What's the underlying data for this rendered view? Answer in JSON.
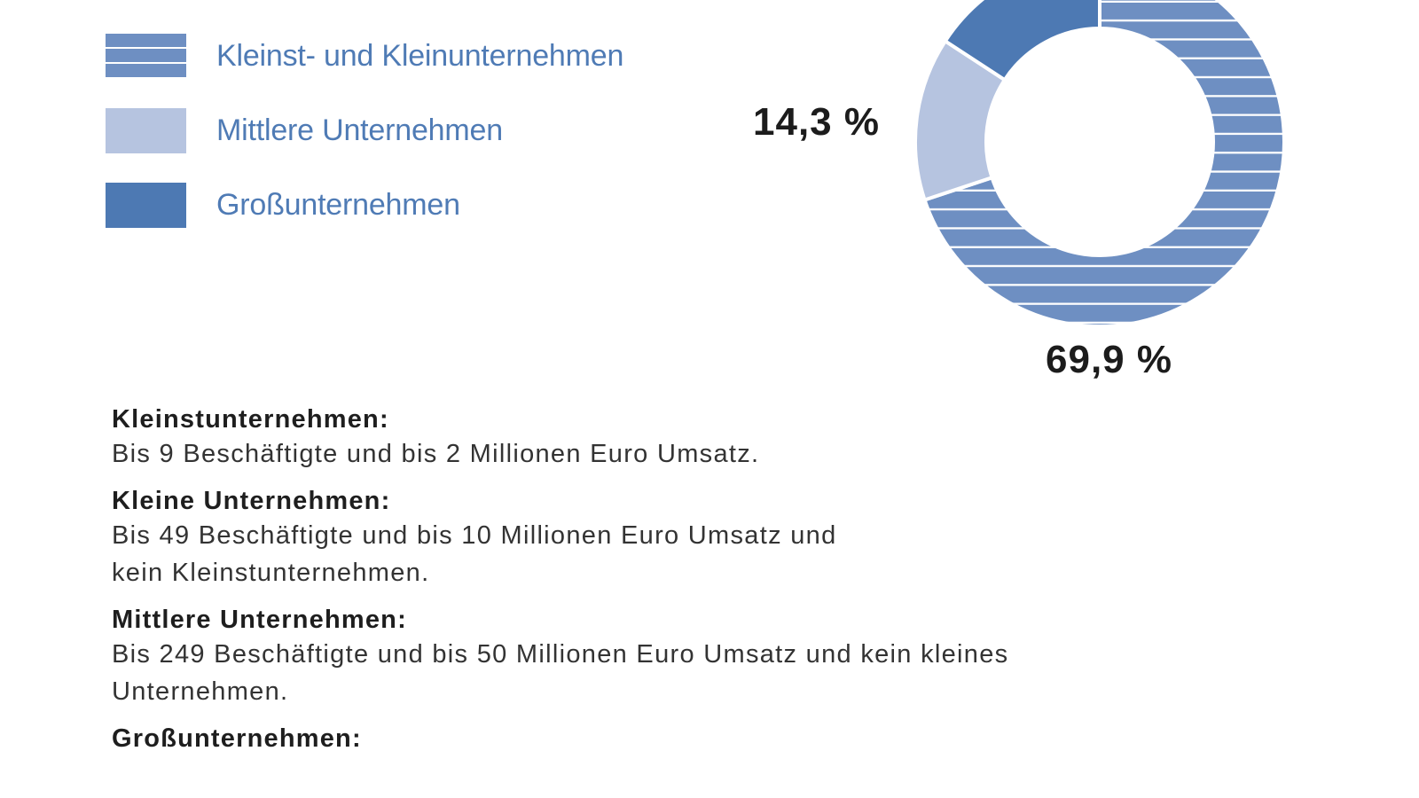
{
  "legend": {
    "items": [
      {
        "label": "Kleinst- und Kleinunternehmen",
        "color": "#6E8FC2",
        "pattern": "horizontal-stripes"
      },
      {
        "label": "Mittlere Unternehmen",
        "color": "#B6C4E0",
        "pattern": "solid"
      },
      {
        "label": "Großunternehmen",
        "color": "#4D79B3",
        "pattern": "solid"
      }
    ]
  },
  "labels": {
    "mittlere": "14,3 %",
    "klein": "69,9 %"
  },
  "definitions": [
    {
      "title": "Kleinstunternehmen:",
      "text": [
        "Bis 9 Beschäftigte und bis 2 Millionen Euro Umsatz."
      ]
    },
    {
      "title": "Kleine Unternehmen:",
      "text": [
        "Bis 49 Beschäftigte und bis 10 Millionen Euro Umsatz und",
        "kein Kleinstunternehmen."
      ]
    },
    {
      "title": "Mittlere Unternehmen:",
      "text": [
        "Bis 249 Beschäftigte und bis 50 Millionen Euro Umsatz und kein kleines",
        "Unternehmen."
      ]
    },
    {
      "title": "Großunternehmen:",
      "text": []
    }
  ],
  "chart_data": {
    "type": "pie",
    "variant": "donut",
    "title": "",
    "categories": [
      "Kleinst- und Kleinunternehmen",
      "Mittlere Unternehmen",
      "Großunternehmen"
    ],
    "values": [
      69.9,
      14.3,
      15.8
    ],
    "value_labels": [
      "69,9 %",
      "14,3 %",
      ""
    ],
    "colors": [
      "#6E8FC2",
      "#B6C4E0",
      "#4D79B3"
    ],
    "unit": "%",
    "legend_position": "left",
    "note": "Großunternehmen share not labeled in visible area; value inferred as remainder (100 - 69.9 - 14.3)"
  }
}
